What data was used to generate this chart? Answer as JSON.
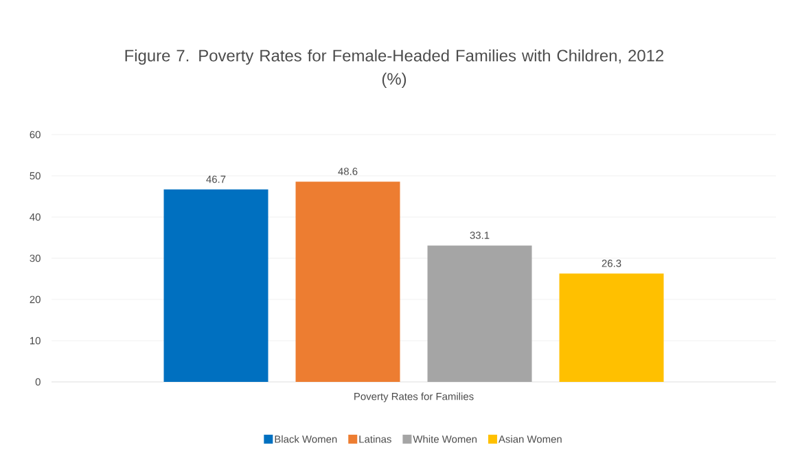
{
  "chart_data": {
    "type": "bar",
    "title": "Figure 7. Poverty Rates for Female-Headed Families with Children, 2012",
    "subtitle": "(%)",
    "categories": [
      "Poverty Rates for Families"
    ],
    "series": [
      {
        "name": "Black Women",
        "color": "#0070c0",
        "values": [
          46.7
        ]
      },
      {
        "name": "Latinas",
        "color": "#ed7d31",
        "values": [
          48.6
        ]
      },
      {
        "name": "White Women",
        "color": "#a5a5a5",
        "values": [
          33.1
        ]
      },
      {
        "name": "Asian Women",
        "color": "#ffc000",
        "values": [
          26.3
        ]
      }
    ],
    "ylim": [
      0,
      60
    ],
    "yticks": [
      0,
      10,
      20,
      30,
      40,
      50,
      60
    ],
    "grid": "y",
    "legend": "bottom",
    "data_labels": true
  }
}
